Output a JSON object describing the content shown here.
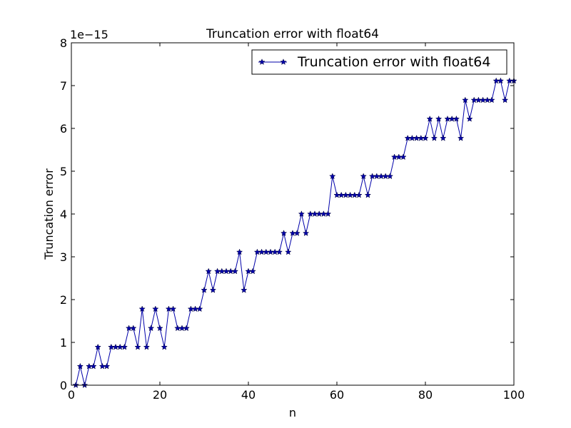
{
  "chart_data": {
    "type": "line",
    "title": "Truncation error with float64",
    "xlabel": "n",
    "ylabel": "Truncation error",
    "offset_text": "1e−15",
    "xlim": [
      0,
      100
    ],
    "ylim": [
      0,
      8
    ],
    "xticks": [
      0,
      20,
      40,
      60,
      80,
      100
    ],
    "yticks": [
      0,
      1,
      2,
      3,
      4,
      5,
      6,
      7,
      8
    ],
    "xtick_labels": [
      "0",
      "20",
      "40",
      "60",
      "80",
      "100"
    ],
    "ytick_labels": [
      "0",
      "1",
      "2",
      "3",
      "4",
      "5",
      "6",
      "7",
      "8"
    ],
    "grid": false,
    "legend_position": "top-right",
    "series": [
      {
        "name": "Truncation error with float64",
        "color": "#0000aa",
        "marker": "star",
        "x": [
          1,
          2,
          3,
          4,
          5,
          6,
          7,
          8,
          9,
          10,
          11,
          12,
          13,
          14,
          15,
          16,
          17,
          18,
          19,
          20,
          21,
          22,
          23,
          24,
          25,
          26,
          27,
          28,
          29,
          30,
          31,
          32,
          33,
          34,
          35,
          36,
          37,
          38,
          39,
          40,
          41,
          42,
          43,
          44,
          45,
          46,
          47,
          48,
          49,
          50,
          51,
          52,
          53,
          54,
          55,
          56,
          57,
          58,
          59,
          60,
          61,
          62,
          63,
          64,
          65,
          66,
          67,
          68,
          69,
          70,
          71,
          72,
          73,
          74,
          75,
          76,
          77,
          78,
          79,
          80,
          81,
          82,
          83,
          84,
          85,
          86,
          87,
          88,
          89,
          90,
          91,
          92,
          93,
          94,
          95,
          96,
          97,
          98,
          99,
          100
        ],
        "y": [
          0,
          0.44,
          0,
          0.44,
          0.44,
          0.89,
          0.44,
          0.44,
          0.89,
          0.89,
          0.89,
          0.89,
          1.33,
          1.33,
          0.89,
          1.78,
          0.89,
          1.33,
          1.78,
          1.33,
          0.89,
          1.78,
          1.78,
          1.33,
          1.33,
          1.33,
          1.78,
          1.78,
          1.78,
          2.22,
          2.66,
          2.22,
          2.66,
          2.66,
          2.66,
          2.66,
          2.66,
          3.11,
          2.22,
          2.66,
          2.66,
          3.11,
          3.11,
          3.11,
          3.11,
          3.11,
          3.11,
          3.55,
          3.11,
          3.55,
          3.55,
          4.0,
          3.55,
          4.0,
          4.0,
          4.0,
          4.0,
          4.0,
          4.88,
          4.44,
          4.44,
          4.44,
          4.44,
          4.44,
          4.44,
          4.88,
          4.44,
          4.88,
          4.88,
          4.88,
          4.88,
          4.88,
          5.33,
          5.33,
          5.33,
          5.77,
          5.77,
          5.77,
          5.77,
          5.77,
          6.22,
          5.77,
          6.22,
          5.77,
          6.22,
          6.22,
          6.22,
          5.77,
          6.66,
          6.22,
          6.66,
          6.66,
          6.66,
          6.66,
          6.66,
          7.11,
          7.11,
          6.66,
          7.11,
          7.11
        ]
      }
    ]
  }
}
